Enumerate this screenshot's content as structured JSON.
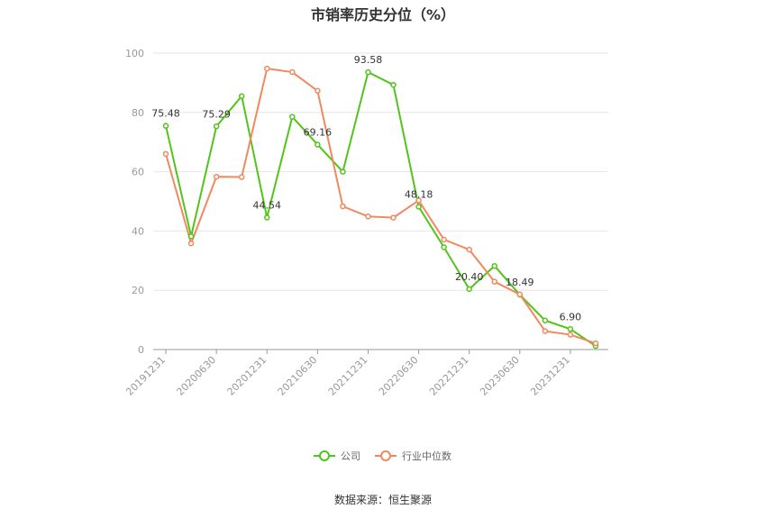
{
  "title": "市销率历史分位（%）",
  "source": "数据来源：恒生聚源",
  "chart_data": {
    "type": "line",
    "x": [
      "20191231",
      "20200331",
      "20200630",
      "20200930",
      "20201231",
      "20210331",
      "20210630",
      "20210930",
      "20211231",
      "20220331",
      "20220630",
      "20220930",
      "20221231",
      "20230331",
      "20230630",
      "20230930",
      "20231231",
      "20240331"
    ],
    "x_tick_labels": [
      "20191231",
      "20200630",
      "20201231",
      "20210630",
      "20211231",
      "20220630",
      "20221231",
      "20230630",
      "20231231"
    ],
    "ylim": [
      0,
      100
    ],
    "y_ticks": [
      0,
      20,
      40,
      60,
      80,
      100
    ],
    "grid": true,
    "legend_position": "bottom",
    "series": [
      {
        "name": "公司",
        "color": "#52c41a",
        "values": [
          75.48,
          38.2,
          75.29,
          85.5,
          44.54,
          78.5,
          69.16,
          60.0,
          93.58,
          89.3,
          48.18,
          34.5,
          20.4,
          28.2,
          18.49,
          9.8,
          6.9,
          1.2
        ],
        "labels": [
          "75.48",
          "",
          "75.29",
          "",
          "44.54",
          "",
          "69.16",
          "",
          "93.58",
          "",
          "48.18",
          "",
          "20.40",
          "",
          "18.49",
          "",
          "6.90",
          ""
        ]
      },
      {
        "name": "行业中位数",
        "color": "#f0895e",
        "values": [
          66.0,
          35.8,
          58.3,
          58.2,
          94.8,
          93.6,
          87.3,
          48.3,
          44.9,
          44.5,
          50.3,
          37.1,
          33.7,
          22.9,
          18.6,
          6.2,
          5.0,
          2.1
        ]
      }
    ]
  }
}
